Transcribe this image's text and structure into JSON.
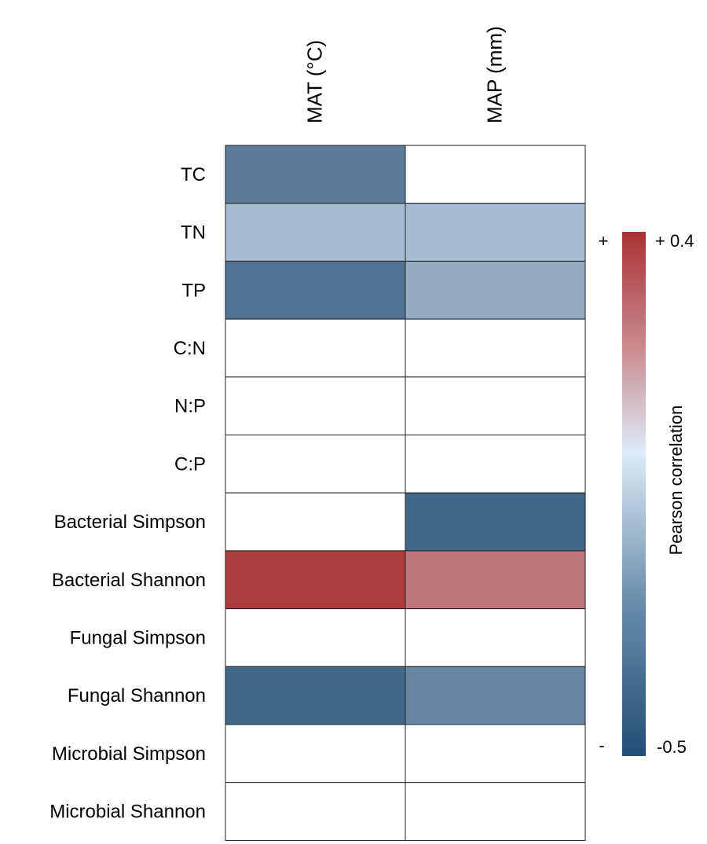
{
  "chart_data": {
    "type": "heatmap",
    "columns": [
      "MAT (°C)",
      "MAP (mm)"
    ],
    "rows": [
      "TC",
      "TN",
      "TP",
      "C:N",
      "N:P",
      "C:P",
      "Bacterial Simpson",
      "Bacterial Shannon",
      "Fungal Simpson",
      "Fungal Shannon",
      "Microbial Simpson",
      "Microbial Shannon"
    ],
    "values": [
      [
        -0.35,
        null
      ],
      [
        -0.15,
        -0.15
      ],
      [
        -0.38,
        -0.2
      ],
      [
        null,
        null
      ],
      [
        null,
        null
      ],
      [
        null,
        null
      ],
      [
        null,
        -0.42
      ],
      [
        0.38,
        0.25
      ],
      [
        null,
        null
      ],
      [
        -0.42,
        -0.32
      ],
      [
        null,
        null
      ],
      [
        null,
        null
      ]
    ],
    "colorbar": {
      "label": "Pearson correlation",
      "min": -0.5,
      "max": 0.4,
      "min_label": "-0.5",
      "max_label": "+ 0.4",
      "plus_sign": "+",
      "minus_sign": "-",
      "colors": {
        "low": "#234e74",
        "mid": "#deebf7",
        "high": "#aa3232"
      }
    },
    "legend_position": "right",
    "grid": true
  }
}
